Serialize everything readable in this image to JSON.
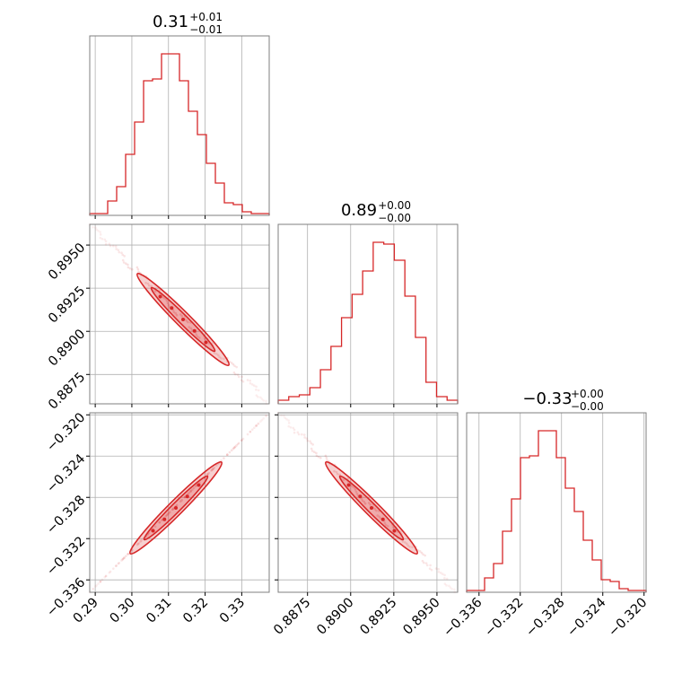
{
  "chart_data": {
    "type": "corner",
    "color": "#d62728",
    "params": [
      {
        "title_value": "0.31",
        "title_plus": "+0.01",
        "title_minus": "−0.01",
        "range": [
          0.2885,
          0.3375
        ],
        "ticks": [
          0.29,
          0.3,
          0.31,
          0.32,
          0.33
        ],
        "tick_labels": [
          "0.29",
          "0.30",
          "0.31",
          "0.32",
          "0.33"
        ],
        "hist": [
          1,
          1,
          8,
          16,
          34,
          52,
          75,
          76,
          90,
          90,
          75,
          58,
          45,
          29,
          18,
          7,
          6,
          2,
          1,
          1
        ]
      },
      {
        "title_value": "0.89",
        "title_plus": "+0.00",
        "title_minus": "−0.00",
        "range": [
          0.8858,
          0.8962
        ],
        "ticks": [
          0.8875,
          0.89,
          0.8925,
          0.895
        ],
        "tick_labels": [
          "0.8875",
          "0.8900",
          "0.8925",
          "0.8950"
        ],
        "hist": [
          2,
          4,
          5,
          9,
          19,
          32,
          48,
          61,
          74,
          90,
          89,
          80,
          60,
          37,
          12,
          4,
          2
        ]
      },
      {
        "title_value": "−0.33",
        "title_plus": "+0.00",
        "title_minus": "−0.00",
        "range": [
          -0.3372,
          -0.3198
        ],
        "ticks": [
          -0.336,
          -0.332,
          -0.328,
          -0.324,
          -0.32
        ],
        "tick_labels": [
          "−0.336",
          "−0.332",
          "−0.328",
          "−0.324",
          "−0.320"
        ],
        "hist": [
          1,
          1,
          8,
          16,
          34,
          52,
          75,
          76,
          90,
          90,
          75,
          58,
          45,
          29,
          18,
          7,
          6,
          2,
          1,
          1
        ]
      }
    ],
    "correlations": {
      "p1_p0": -1,
      "p2_p0": 1,
      "p2_p1": -1
    }
  }
}
